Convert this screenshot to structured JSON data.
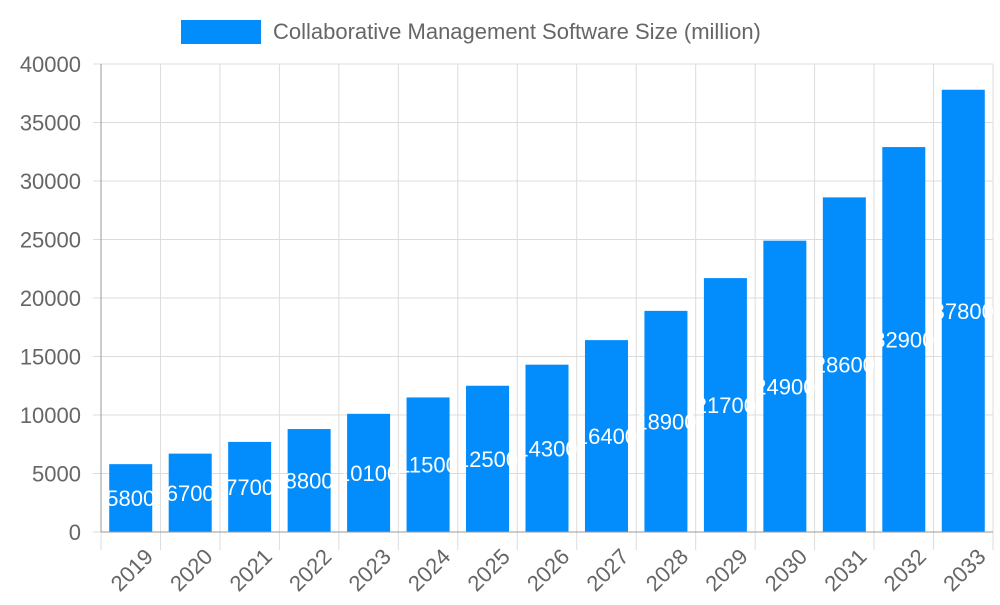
{
  "chart_data": {
    "type": "bar",
    "title": "",
    "xlabel": "",
    "ylabel": "",
    "categories": [
      "2019",
      "2020",
      "2021",
      "2022",
      "2023",
      "2024",
      "2025",
      "2026",
      "2027",
      "2028",
      "2029",
      "2030",
      "2031",
      "2032",
      "2033"
    ],
    "series": [
      {
        "name": "Collaborative Management Software Size (million)",
        "values": [
          5800,
          6700,
          7700,
          8800,
          10100,
          11500,
          12500,
          14300,
          16400,
          18900,
          21700,
          24900,
          28600,
          32900,
          37800
        ]
      }
    ],
    "ylim": [
      0,
      40000
    ],
    "yticks": [
      0,
      5000,
      10000,
      15000,
      20000,
      25000,
      30000,
      35000,
      40000
    ],
    "grid": true,
    "legend": "top",
    "data_labels": true,
    "colors": {
      "bar": "#038cfc",
      "grid": "#dcdcdc",
      "text": "#666666",
      "label": "#ffffff"
    }
  }
}
